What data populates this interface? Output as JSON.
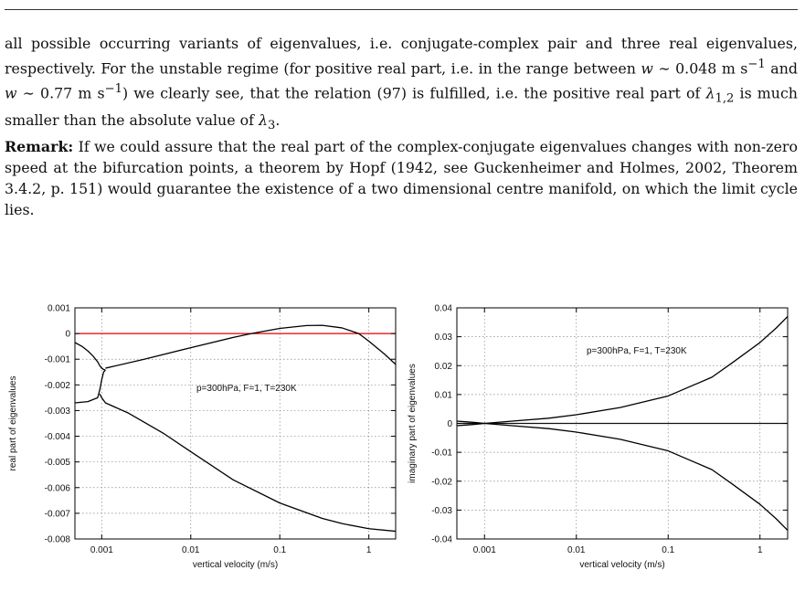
{
  "paragraph": {
    "line1": "all possible occurring variants of eigenvalues, i.e. conjugate-complex pair and three real eigenvalues, respectively. For the unstable regime (for positive real part, i.e. in the range between ",
    "w1_var": "w",
    "w1_sim": " ∼ 0.048 m s",
    "w1_exp": "−1",
    "and_text": " and ",
    "w2_var": "w",
    "w2_sim": " ∼ 0.77 m s",
    "w2_exp": "−1",
    "mid_text": ") we clearly see, that the relation (97) is fulfilled, i.e. the positive real part of ",
    "lambda12": "λ",
    "lambda12_sub": "1,2",
    "end_text1": " is much smaller than the absolute value of ",
    "lambda3": "λ",
    "lambda3_sub": "3",
    "end_text2": "."
  },
  "remark": {
    "label": "Remark:",
    "text": " If we could assure that the real part of the complex-conjugate eigenvalues changes with non-zero speed at the bifurcation points, a theorem by Hopf (1942, see Guckenheimer and Holmes, 2002, Theorem 3.4.2, p. 151) would guarantee the existence of a two dimensional centre manifold, on which the limit cycle lies."
  },
  "chart_data": [
    {
      "type": "line",
      "xscale": "log",
      "xlim": [
        0.0005,
        2
      ],
      "ylim": [
        -0.008,
        0.001
      ],
      "xlabel": "vertical velocity (m/s)",
      "ylabel": "real part of eigenvalues",
      "annotation": "p=300hPa, F=1, T=230K",
      "grid": true,
      "xticks": [
        0.001,
        0.01,
        0.1,
        1
      ],
      "xtick_labels": [
        "0.001",
        "0.01",
        "0.1",
        "1"
      ],
      "yticks": [
        0.001,
        0,
        -0.001,
        -0.002,
        -0.003,
        -0.004,
        -0.005,
        -0.006,
        -0.007,
        -0.008
      ],
      "ytick_labels": [
        "0.001",
        "0",
        "-0.001",
        "-0.002",
        "-0.003",
        "-0.004",
        "-0.005",
        "-0.006",
        "-0.007",
        "-0.008"
      ],
      "reference_line": {
        "y": 0,
        "color": "#e00000"
      },
      "series": [
        {
          "x": [
            0.0005,
            0.0006,
            0.0007,
            0.0008,
            0.0009,
            0.00095,
            0.001,
            0.00105,
            0.0011
          ],
          "y": [
            -0.00035,
            -0.0005,
            -0.00068,
            -0.00088,
            -0.0011,
            -0.00125,
            -0.00135,
            -0.0014,
            -0.00142
          ]
        },
        {
          "x": [
            0.0005,
            0.0007,
            0.0009,
            0.00095,
            0.001,
            0.00105,
            0.0011
          ],
          "y": [
            -0.0027,
            -0.00265,
            -0.0025,
            -0.0022,
            -0.0018,
            -0.0015,
            -0.00142
          ]
        },
        {
          "x": [
            0.0011,
            0.003,
            0.01,
            0.03,
            0.048,
            0.1,
            0.2,
            0.3,
            0.5,
            0.77,
            1,
            1.5,
            2
          ],
          "y": [
            -0.00135,
            -0.001,
            -0.00055,
            -0.00015,
            0,
            0.0002,
            0.00031,
            0.00032,
            0.00022,
            0,
            -0.0003,
            -0.0008,
            -0.0012
          ]
        },
        {
          "x": [
            0.00095,
            0.001,
            0.0011,
            0.002,
            0.005,
            0.01,
            0.03,
            0.1,
            0.3,
            0.5,
            1,
            2
          ],
          "y": [
            -0.00235,
            -0.0025,
            -0.0027,
            -0.0031,
            -0.0039,
            -0.0046,
            -0.0057,
            -0.0066,
            -0.0072,
            -0.0074,
            -0.0076,
            -0.0077
          ]
        }
      ]
    },
    {
      "type": "line",
      "xscale": "log",
      "xlim": [
        0.0005,
        2
      ],
      "ylim": [
        -0.04,
        0.04
      ],
      "xlabel": "vertical velocity (m/s)",
      "ylabel": "imaginary part of eigenvalues",
      "annotation": "p=300hPa, F=1, T=230K",
      "grid": true,
      "xticks": [
        0.001,
        0.01,
        0.1,
        1
      ],
      "xtick_labels": [
        "0.001",
        "0.01",
        "0.1",
        "1"
      ],
      "yticks": [
        0.04,
        0.03,
        0.02,
        0.01,
        0,
        -0.01,
        -0.02,
        -0.03,
        -0.04
      ],
      "ytick_labels": [
        "0.04",
        "0.03",
        "0.02",
        "0.01",
        "0",
        "-0.01",
        "-0.02",
        "-0.03",
        "-0.04"
      ],
      "reference_line": {
        "y": 0,
        "color": "#111111"
      },
      "series": [
        {
          "x": [
            0.0005,
            0.0008,
            0.001,
            0.002,
            0.005,
            0.01,
            0.03,
            0.1,
            0.3,
            0.5,
            1,
            1.5,
            2
          ],
          "y": [
            -0.0008,
            -0.0003,
            0,
            0.0008,
            0.0018,
            0.003,
            0.0055,
            0.0095,
            0.016,
            0.021,
            0.028,
            0.033,
            0.037
          ]
        },
        {
          "x": [
            0.0005,
            0.0008,
            0.001,
            0.002,
            0.005,
            0.01,
            0.03,
            0.1,
            0.3,
            0.5,
            1,
            1.5,
            2
          ],
          "y": [
            0.0008,
            0.0003,
            0,
            -0.0008,
            -0.0018,
            -0.003,
            -0.0055,
            -0.0095,
            -0.016,
            -0.021,
            -0.028,
            -0.033,
            -0.037
          ]
        }
      ]
    }
  ]
}
